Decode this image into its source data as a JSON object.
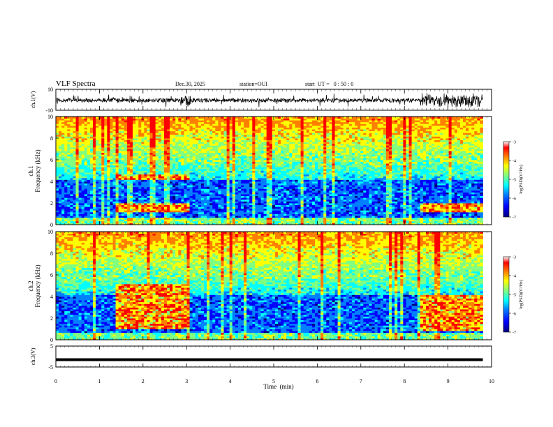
{
  "header": {
    "title": "VLF Spectra",
    "date": "Dec.30, 2025",
    "station": "station=OUI",
    "start_ut": "start  UT =   0 : 50 : 0"
  },
  "chart_data": [
    {
      "type": "line",
      "title": "",
      "ylabel": "ch.1(V)",
      "ylim": [
        -10,
        10
      ],
      "yticks": [
        "10",
        "-10"
      ],
      "description_of_series": "waveform amplitude, bursts near 3 min and 8.4–9.8 min"
    },
    {
      "type": "heatmap",
      "ylabel_line1": "ch.1",
      "ylabel_line2": "Frequency  (kHz)",
      "ylim": [
        0,
        10
      ],
      "yticks": [
        "0",
        "2",
        "4",
        "6",
        "8",
        "10"
      ],
      "colorbar": {
        "label": "log(PSD)(V²/Hz)",
        "ticks": [
          "-3",
          "-4",
          "-5",
          "-6",
          "-7"
        ],
        "range": [
          -7,
          -3
        ]
      },
      "bands": [
        {
          "name": "segment-a",
          "x": [
            1.4,
            3.05
          ],
          "f": [
            4.2,
            4.7
          ]
        },
        {
          "name": "segment-b",
          "x": [
            1.4,
            3.05
          ],
          "f": [
            1.2,
            2.0
          ]
        },
        {
          "name": "segment-c",
          "x": [
            8.35,
            9.8
          ],
          "f": [
            1.2,
            2.0
          ]
        }
      ]
    },
    {
      "type": "heatmap",
      "ylabel_line1": "ch.2",
      "ylabel_line2": "Frequency  (kHz)",
      "ylim": [
        0,
        10
      ],
      "yticks": [
        "0",
        "2",
        "4",
        "6",
        "8",
        "10"
      ],
      "colorbar": {
        "label": "log(PSD)(V²/Hz)",
        "ticks": [
          "-3",
          "-4",
          "-5",
          "-6",
          "-7"
        ],
        "range": [
          -7,
          -3
        ]
      },
      "bands": [
        {
          "name": "segment-a",
          "x": [
            1.4,
            3.05
          ],
          "f": [
            1.0,
            5.2
          ]
        },
        {
          "name": "segment-b",
          "x": [
            8.35,
            9.8
          ],
          "f": [
            0.8,
            4.2
          ]
        }
      ]
    },
    {
      "type": "line",
      "ylabel": "ch.3(V)",
      "ylim": [
        -5,
        5
      ],
      "yticks": [
        "5",
        "0",
        "-5"
      ],
      "constant_value": -1.5
    }
  ],
  "x_axis": {
    "label": "Time  (min)",
    "range": [
      0,
      10
    ],
    "ticks": [
      "0",
      "1",
      "2",
      "3",
      "4",
      "5",
      "6",
      "7",
      "8",
      "9",
      "10"
    ],
    "data_end": 9.8
  },
  "colors": {
    "scale": [
      "#00007f",
      "#0000ff",
      "#0080ff",
      "#00ffff",
      "#80ff80",
      "#ffff00",
      "#ff8000",
      "#ff0000",
      "#ffffff"
    ]
  }
}
